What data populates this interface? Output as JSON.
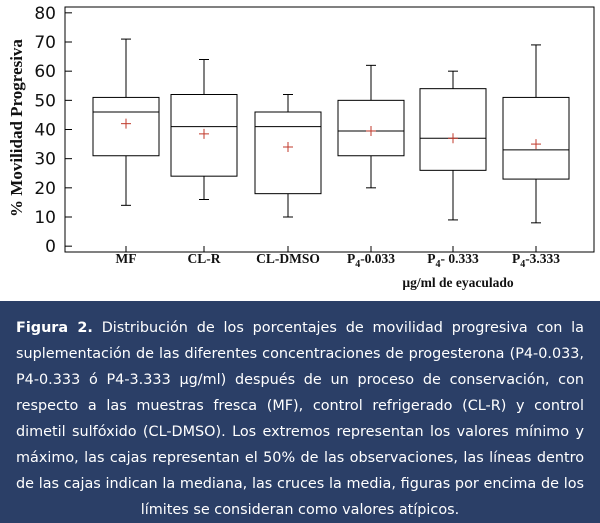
{
  "chart_data": {
    "type": "box",
    "ylabel": "% Movilidad Progresiva",
    "xlabel": "µg/ml de eyaculado",
    "ylim": [
      -2,
      82
    ],
    "yticks": [
      "0",
      "10",
      "20",
      "30",
      "40",
      "50",
      "60",
      "70",
      "80"
    ],
    "categories": [
      {
        "pre": "MF",
        "sub": "",
        "post": ""
      },
      {
        "pre": "CL-R",
        "sub": "",
        "post": ""
      },
      {
        "pre": "CL-DMSO",
        "sub": "",
        "post": ""
      },
      {
        "pre": "P",
        "sub": "4",
        "post": "-0.033"
      },
      {
        "pre": "P",
        "sub": "4",
        "post": "- 0.333"
      },
      {
        "pre": "P",
        "sub": "4",
        "post": "-3.333"
      }
    ],
    "boxes": [
      {
        "min": 14,
        "q1": 31,
        "median": 46,
        "q3": 51,
        "max": 71,
        "mean": 42
      },
      {
        "min": 16,
        "q1": 24,
        "median": 41,
        "q3": 52,
        "max": 64,
        "mean": 38.5
      },
      {
        "min": 10,
        "q1": 18,
        "median": 41,
        "q3": 46,
        "max": 52,
        "mean": 34
      },
      {
        "min": 20,
        "q1": 31,
        "median": 39.5,
        "q3": 50,
        "max": 62,
        "mean": 39.5
      },
      {
        "min": 9,
        "q1": 26,
        "median": 37,
        "q3": 54,
        "max": 60,
        "mean": 37
      },
      {
        "min": 8,
        "q1": 23,
        "median": 33,
        "q3": 51,
        "max": 69,
        "mean": 35
      }
    ],
    "mean_color": "#c0392b"
  },
  "caption": {
    "label": "Figura 2.",
    "text": "Distribución de los porcentajes de movilidad progresiva con la suplementación de las diferentes concentraciones de progesterona (P4-0.033, P4-0.333 ó P4-3.333 µg/ml) después de un proceso de conservación, con respecto a las muestras fresca (MF), control refrigerado (CL-R) y control dimetil sulfóxido (CL-DMSO). Los extremos representan los valores mínimo y máximo, las cajas representan el 50% de las observaciones, las líneas dentro de las cajas indican la mediana, las cruces la media, figuras por encima de los límites se consideran como valores atípicos."
  }
}
